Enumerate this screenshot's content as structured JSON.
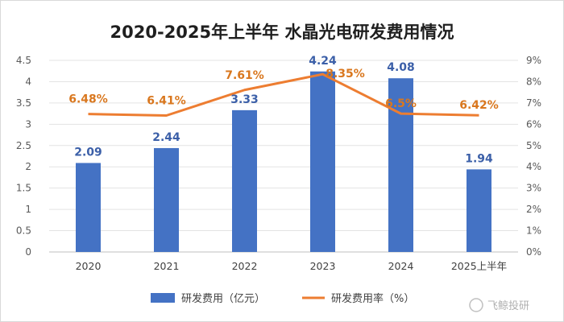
{
  "chart_data": {
    "type": "bar",
    "title": "2020-2025年上半年 水晶光电研发费用情况",
    "categories": [
      "2020",
      "2021",
      "2022",
      "2023",
      "2024",
      "2025上半年"
    ],
    "series": [
      {
        "name": "研发费用（亿元）",
        "type": "bar",
        "axis": "left",
        "values": [
          2.09,
          2.44,
          3.33,
          4.24,
          4.08,
          1.94
        ],
        "labels": [
          "2.09",
          "2.44",
          "3.33",
          "4.24",
          "4.08",
          "1.94"
        ],
        "color": "#4472c4"
      },
      {
        "name": "研发费用率（%）",
        "type": "line",
        "axis": "right",
        "values": [
          6.48,
          6.41,
          7.61,
          8.35,
          6.5,
          6.42
        ],
        "labels": [
          "6.48%",
          "6.41%",
          "7.61%",
          "8.35%",
          "6.5%",
          "6.42%"
        ],
        "color": "#ed7d31"
      }
    ],
    "left_axis": {
      "ylim": [
        0,
        4.5
      ],
      "ticks": [
        "0",
        "0.5",
        "1",
        "1.5",
        "2",
        "2.5",
        "3",
        "3.5",
        "4",
        "4.5"
      ]
    },
    "right_axis": {
      "ylim": [
        0,
        9
      ],
      "ticks": [
        "0%",
        "1%",
        "2%",
        "3%",
        "4%",
        "5%",
        "6%",
        "7%",
        "8%",
        "9%"
      ]
    },
    "grid": true,
    "legend_position": "bottom"
  },
  "watermark": "飞鲸投研"
}
